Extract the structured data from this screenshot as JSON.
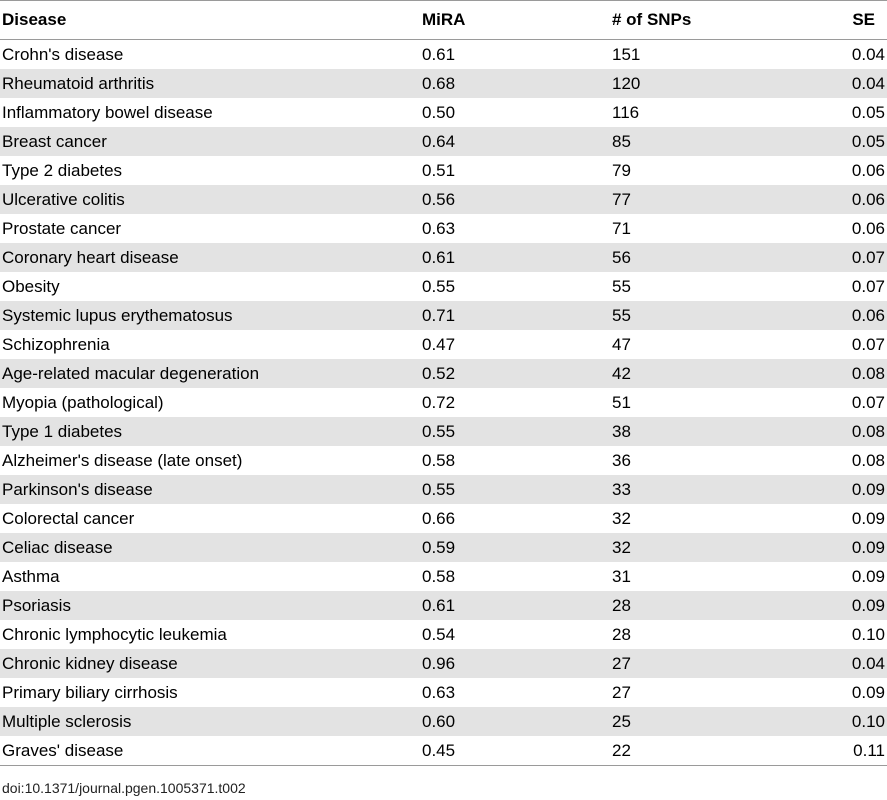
{
  "table": {
    "headers": [
      "Disease",
      "MiRA",
      "# of SNPs",
      "SE"
    ],
    "rows": [
      [
        "Crohn's disease",
        "0.61",
        "151",
        "0.04"
      ],
      [
        "Rheumatoid arthritis",
        "0.68",
        "120",
        "0.04"
      ],
      [
        "Inflammatory bowel disease",
        "0.50",
        "116",
        "0.05"
      ],
      [
        "Breast cancer",
        "0.64",
        "85",
        "0.05"
      ],
      [
        "Type 2 diabetes",
        "0.51",
        "79",
        "0.06"
      ],
      [
        "Ulcerative colitis",
        "0.56",
        "77",
        "0.06"
      ],
      [
        "Prostate cancer",
        "0.63",
        "71",
        "0.06"
      ],
      [
        "Coronary heart disease",
        "0.61",
        "56",
        "0.07"
      ],
      [
        "Obesity",
        "0.55",
        "55",
        "0.07"
      ],
      [
        "Systemic lupus erythematosus",
        "0.71",
        "55",
        "0.06"
      ],
      [
        "Schizophrenia",
        "0.47",
        "47",
        "0.07"
      ],
      [
        "Age-related macular degeneration",
        "0.52",
        "42",
        "0.08"
      ],
      [
        "Myopia (pathological)",
        "0.72",
        "51",
        "0.07"
      ],
      [
        "Type 1 diabetes",
        "0.55",
        "38",
        "0.08"
      ],
      [
        "Alzheimer's disease (late onset)",
        "0.58",
        "36",
        "0.08"
      ],
      [
        "Parkinson's disease",
        "0.55",
        "33",
        "0.09"
      ],
      [
        "Colorectal cancer",
        "0.66",
        "32",
        "0.09"
      ],
      [
        "Celiac disease",
        "0.59",
        "32",
        "0.09"
      ],
      [
        "Asthma",
        "0.58",
        "31",
        "0.09"
      ],
      [
        "Psoriasis",
        "0.61",
        "28",
        "0.09"
      ],
      [
        "Chronic lymphocytic leukemia",
        "0.54",
        "28",
        "0.10"
      ],
      [
        "Chronic kidney disease",
        "0.96",
        "27",
        "0.04"
      ],
      [
        "Primary biliary cirrhosis",
        "0.63",
        "27",
        "0.09"
      ],
      [
        "Multiple sclerosis",
        "0.60",
        "25",
        "0.10"
      ],
      [
        "Graves' disease",
        "0.45",
        "22",
        "0.11"
      ]
    ]
  },
  "doi": "doi:10.1371/journal.pgen.1005371.t002"
}
